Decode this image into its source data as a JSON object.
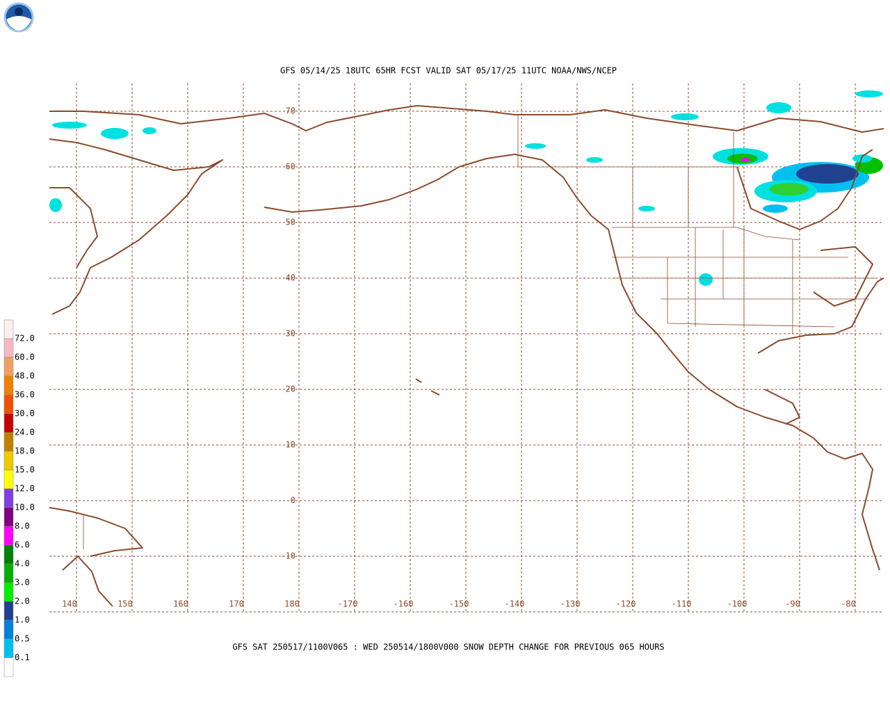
{
  "header": {
    "title": "GFS 05/14/25 18UTC 65HR FCST VALID SAT 05/17/25 11UTC NOAA/NWS/NCEP"
  },
  "map": {
    "lat_labels": [
      "70",
      "60",
      "50",
      "40",
      "30",
      "20",
      "10",
      "0",
      "-10"
    ],
    "lon_labels": [
      "140",
      "150",
      "160",
      "170",
      "180",
      "-170",
      "-160",
      "-150",
      "-140",
      "-130",
      "-120",
      "-110",
      "-100",
      "-90",
      "-80"
    ],
    "grid_color": "#8b4a2b"
  },
  "legend": {
    "labels": [
      "72.0",
      "60.0",
      "48.0",
      "36.0",
      "30.0",
      "24.0",
      "18.0",
      "15.0",
      "12.0",
      "10.0",
      "8.0",
      "6.0",
      "4.0",
      "3.0",
      "2.0",
      "1.0",
      "0.5",
      "0.1"
    ],
    "colors": [
      "#ffeef0",
      "#f8b8c0",
      "#f0a060",
      "#f08000",
      "#f05000",
      "#c80000",
      "#c08000",
      "#f0c800",
      "#ffff00",
      "#8040e0",
      "#800080",
      "#ff00ff",
      "#008000",
      "#00b000",
      "#00f000",
      "#204090",
      "#0080e0",
      "#00c0f0",
      "#ffffff"
    ]
  },
  "footer": {
    "caption": "GFS SAT 250517/1100V065 : WED 250514/1800V000 SNOW DEPTH CHANGE FOR PREVIOUS 065 HOURS"
  }
}
